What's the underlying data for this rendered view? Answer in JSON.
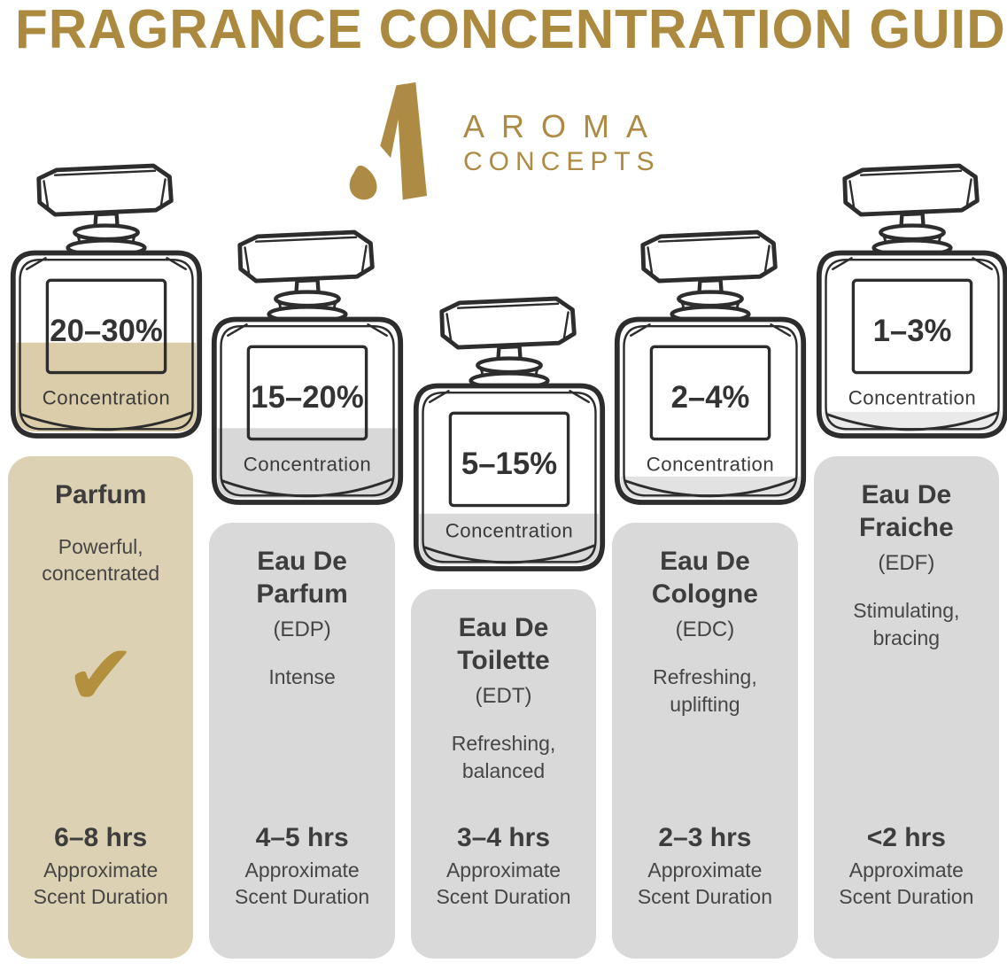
{
  "title": "FRAGRANCE CONCENTRATION GUIDE",
  "logo": {
    "line1": "AROMA",
    "line2": "CONCEPTS"
  },
  "colors": {
    "title_gold": "#ab8a3f",
    "logo_gold": "#ad8b44",
    "check_gold": "#b2903e",
    "tan_card": "#ddd1b3",
    "gray_card": "#d9d9d9",
    "ink": "#2d2d2d"
  },
  "columns": [
    {
      "name": "Parfum",
      "abbr": "",
      "description": "Powerful, concentrated",
      "check_icon": "✔",
      "bottle_pct": "20–30%",
      "concentration_label": "Concentration",
      "duration": "6–8 hrs",
      "duration_note": "Approximate Scent Duration",
      "card_color": "#ddd1b3",
      "fill_color": "#dccdaa",
      "fill_level": 0.51
    },
    {
      "name": "Eau De Parfum",
      "abbr": "(EDP)",
      "description": "Intense",
      "check_icon": "",
      "bottle_pct": "15–20%",
      "concentration_label": "Concentration",
      "duration": "4–5 hrs",
      "duration_note": "Approximate Scent Duration",
      "card_color": "#d9d9d9",
      "fill_color": "#d8d8d8",
      "fill_level": 0.4
    },
    {
      "name": "Eau De Toilette",
      "abbr": "(EDT)",
      "description": "Refreshing, balanced",
      "check_icon": "",
      "bottle_pct": "5–15%",
      "concentration_label": "Concentration",
      "duration": "3–4 hrs",
      "duration_note": "Approximate Scent Duration",
      "card_color": "#d9d9d9",
      "fill_color": "#d9d9d9",
      "fill_level": 0.29
    },
    {
      "name": "Eau De Cologne",
      "abbr": "(EDC)",
      "description": "Refreshing, uplifting",
      "check_icon": "",
      "bottle_pct": "2–4%",
      "concentration_label": "Concentration",
      "duration": "2–3 hrs",
      "duration_note": "Approximate Scent Duration",
      "card_color": "#d9d9d9",
      "fill_color": "#e2e2e2",
      "fill_level": 0.12
    },
    {
      "name": "Eau De Fraiche",
      "abbr": "(EDF)",
      "description": "Stimulating, bracing",
      "check_icon": "",
      "bottle_pct": "1–3%",
      "concentration_label": "Concentration",
      "duration": "<2 hrs",
      "duration_note": "Approximate Scent Duration",
      "card_color": "#d9d9d9",
      "fill_color": "#eaeaea",
      "fill_level": 0.11
    }
  ]
}
